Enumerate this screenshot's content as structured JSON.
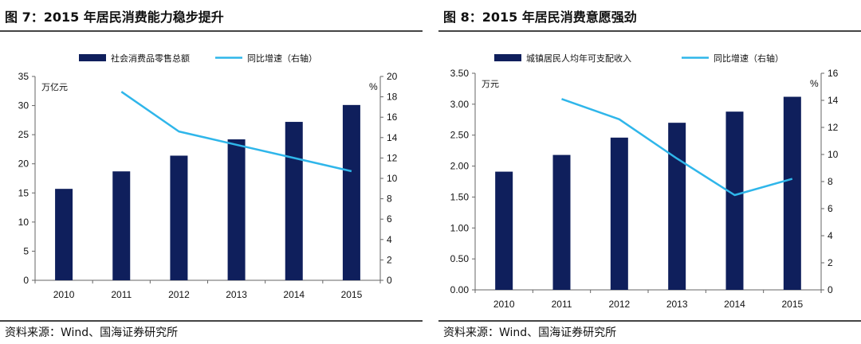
{
  "colors": {
    "bar": "#0f1f5c",
    "line": "#2fb6ea",
    "axis": "#666666",
    "text": "#111111"
  },
  "left": {
    "title": "图 7：2015 年居民消费能力稳步提升",
    "source": "资料来源：Wind、国海证券研究所",
    "chart_data": {
      "type": "bar+line",
      "categories": [
        "2010",
        "2011",
        "2012",
        "2013",
        "2014",
        "2015"
      ],
      "series": [
        {
          "name": "社会消费品零售总额",
          "type": "bar",
          "axis": "left",
          "values": [
            15.7,
            18.7,
            21.4,
            24.2,
            27.2,
            30.1
          ]
        },
        {
          "name": "同比增速（右轴）",
          "type": "line",
          "axis": "right",
          "values": [
            null,
            18.5,
            14.6,
            13.3,
            12.0,
            10.7
          ]
        }
      ],
      "left_axis": {
        "unit": "万亿元",
        "ylim": [
          0,
          35
        ],
        "ticks": [
          0,
          5,
          10,
          15,
          20,
          25,
          30,
          35
        ],
        "labels": [
          "0",
          "5",
          "10",
          "15",
          "20",
          "25",
          "30",
          "35"
        ]
      },
      "right_axis": {
        "unit": "%",
        "ylim": [
          0,
          20
        ],
        "ticks": [
          0,
          2,
          4,
          6,
          8,
          10,
          12,
          14,
          16,
          18,
          20
        ],
        "labels": [
          "0",
          "2",
          "4",
          "6",
          "8",
          "10",
          "12",
          "14",
          "16",
          "18",
          "20"
        ]
      },
      "legend": "top"
    }
  },
  "right": {
    "title": "图 8：2015 年居民消费意愿强劲",
    "source": "资料来源：Wind、国海证券研究所",
    "chart_data": {
      "type": "bar+line",
      "categories": [
        "2010",
        "2011",
        "2012",
        "2013",
        "2014",
        "2015"
      ],
      "series": [
        {
          "name": "城镇居民人均年可支配收入",
          "type": "bar",
          "axis": "left",
          "values": [
            1.91,
            2.18,
            2.46,
            2.7,
            2.88,
            3.12
          ]
        },
        {
          "name": "同比增速（右轴）",
          "type": "line",
          "axis": "right",
          "values": [
            null,
            14.1,
            12.6,
            9.7,
            7.0,
            8.2
          ]
        }
      ],
      "left_axis": {
        "unit": "万元",
        "ylim": [
          0,
          3.5
        ],
        "ticks": [
          0,
          0.5,
          1,
          1.5,
          2,
          2.5,
          3,
          3.5
        ],
        "labels": [
          "0.00",
          "0.50",
          "1.00",
          "1.50",
          "2.00",
          "2.50",
          "3.00",
          "3.50"
        ]
      },
      "right_axis": {
        "unit": "%",
        "ylim": [
          0,
          16
        ],
        "ticks": [
          0,
          2,
          4,
          6,
          8,
          10,
          12,
          14,
          16
        ],
        "labels": [
          "0",
          "2",
          "4",
          "6",
          "8",
          "10",
          "12",
          "14",
          "16"
        ]
      },
      "legend": "top"
    }
  }
}
